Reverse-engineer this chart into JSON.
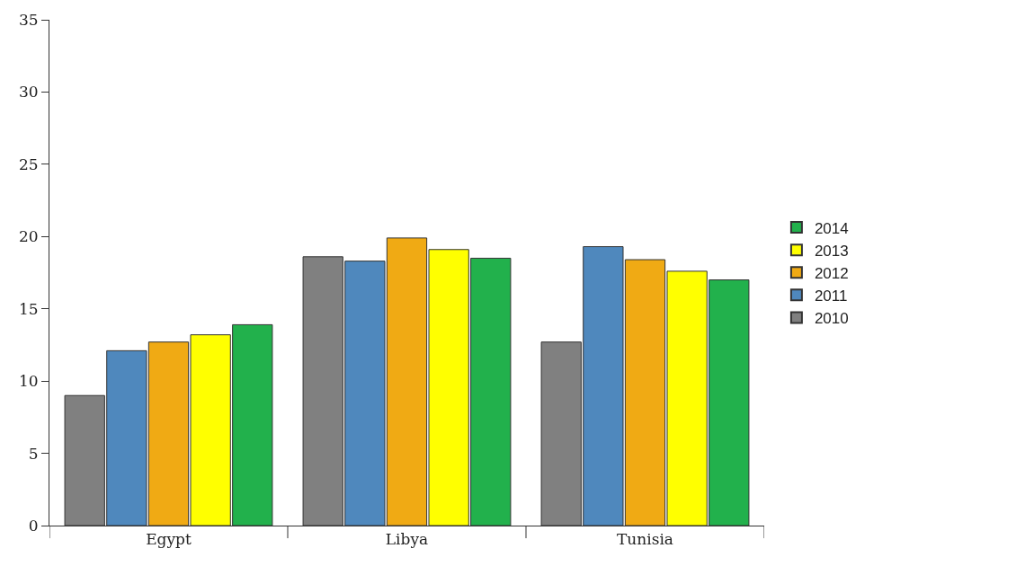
{
  "chart_data": {
    "type": "bar",
    "categories": [
      "Egypt",
      "Libya",
      "Tunisia"
    ],
    "series": [
      {
        "name": "2010",
        "color": "#808080",
        "values": [
          9.0,
          18.6,
          12.7
        ]
      },
      {
        "name": "2011",
        "color": "#4f88bd",
        "values": [
          12.1,
          18.3,
          19.3
        ]
      },
      {
        "name": "2012",
        "color": "#f0aa14",
        "values": [
          12.7,
          19.9,
          18.4
        ]
      },
      {
        "name": "2013",
        "color": "#ffff00",
        "values": [
          13.2,
          19.1,
          17.6
        ]
      },
      {
        "name": "2014",
        "color": "#22b14c",
        "values": [
          13.9,
          18.5,
          17.0
        ]
      }
    ],
    "ylim": [
      0,
      35
    ],
    "yticks": [
      0,
      5,
      10,
      15,
      20,
      25,
      30,
      35
    ],
    "legend": "right"
  }
}
